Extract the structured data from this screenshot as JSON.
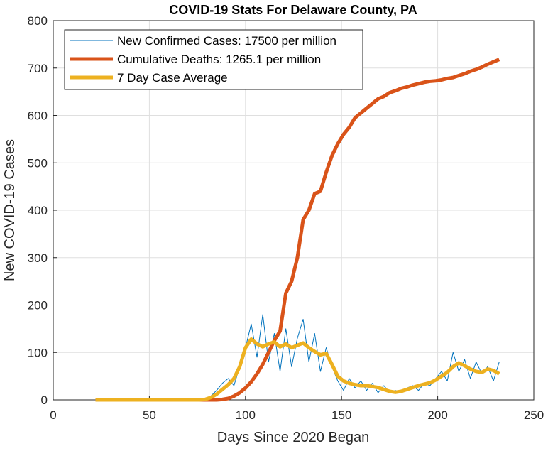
{
  "chart_data": {
    "type": "line",
    "title": "COVID-19 Stats For Delaware County, PA",
    "x_label": "Days Since 2020 Began",
    "y_label": "New COVID-19 Cases",
    "x": [
      22,
      25,
      28,
      31,
      34,
      37,
      40,
      43,
      46,
      49,
      52,
      55,
      58,
      61,
      64,
      67,
      70,
      73,
      76,
      79,
      82,
      85,
      88,
      91,
      94,
      97,
      100,
      103,
      106,
      109,
      112,
      115,
      118,
      121,
      124,
      127,
      130,
      133,
      136,
      139,
      142,
      145,
      148,
      151,
      154,
      157,
      160,
      163,
      166,
      169,
      172,
      175,
      178,
      181,
      184,
      187,
      190,
      193,
      196,
      199,
      202,
      205,
      208,
      211,
      214,
      217,
      220,
      223,
      226,
      229,
      232
    ],
    "series": [
      {
        "name": "New Confirmed Cases: 17500 per million",
        "color": "#0072BD",
        "width": 1,
        "values": [
          0,
          0,
          0,
          0,
          0,
          0,
          0,
          0,
          0,
          0,
          0,
          0,
          0,
          0,
          0,
          0,
          0,
          0,
          0,
          2,
          8,
          20,
          35,
          45,
          30,
          70,
          110,
          160,
          90,
          180,
          80,
          140,
          60,
          150,
          70,
          130,
          170,
          80,
          140,
          60,
          110,
          70,
          40,
          20,
          45,
          25,
          40,
          20,
          35,
          15,
          30,
          15,
          20,
          15,
          25,
          30,
          20,
          35,
          30,
          45,
          60,
          40,
          100,
          60,
          85,
          45,
          80,
          55,
          70,
          40,
          80
        ]
      },
      {
        "name": "Cumulative Deaths: 1265.1 per million",
        "color": "#D95319",
        "width": 5,
        "values": [
          0,
          0,
          0,
          0,
          0,
          0,
          0,
          0,
          0,
          0,
          0,
          0,
          0,
          0,
          0,
          0,
          0,
          0,
          0,
          0,
          0,
          0,
          1,
          3,
          8,
          15,
          25,
          38,
          55,
          75,
          100,
          125,
          145,
          225,
          250,
          300,
          380,
          400,
          435,
          440,
          480,
          515,
          540,
          560,
          575,
          595,
          605,
          615,
          625,
          635,
          640,
          648,
          652,
          657,
          660,
          664,
          667,
          670,
          672,
          673,
          675,
          678,
          680,
          684,
          688,
          693,
          697,
          702,
          708,
          713,
          718
        ]
      },
      {
        "name": "7 Day Case Average",
        "color": "#EDB120",
        "width": 5,
        "values": [
          0,
          0,
          0,
          0,
          0,
          0,
          0,
          0,
          0,
          0,
          0,
          0,
          0,
          0,
          0,
          0,
          0,
          0,
          0,
          1,
          5,
          12,
          22,
          32,
          45,
          70,
          110,
          128,
          118,
          112,
          118,
          122,
          112,
          118,
          110,
          115,
          120,
          110,
          102,
          95,
          98,
          75,
          50,
          40,
          35,
          32,
          30,
          30,
          28,
          26,
          22,
          18,
          16,
          18,
          22,
          26,
          30,
          33,
          36,
          42,
          50,
          58,
          70,
          78,
          72,
          65,
          60,
          58,
          65,
          62,
          55
        ]
      }
    ],
    "xlim": [
      0,
      250
    ],
    "xticks": [
      0,
      50,
      100,
      150,
      200,
      250
    ],
    "ylim": [
      0,
      800
    ],
    "yticks": [
      0,
      100,
      200,
      300,
      400,
      500,
      600,
      700,
      800
    ],
    "grid": true,
    "legend": "top-left"
  }
}
